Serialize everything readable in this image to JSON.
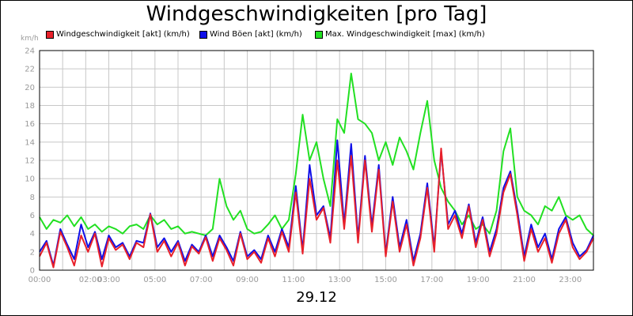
{
  "chart_data": {
    "type": "line",
    "title": "Windgeschwindigkeiten [pro Tag]",
    "ylabel": "km/h",
    "xlabel": "29.12",
    "ylim": [
      0,
      24
    ],
    "yticks": [
      0,
      2,
      4,
      6,
      8,
      10,
      12,
      14,
      16,
      18,
      20,
      22,
      24
    ],
    "xlim": [
      0,
      24
    ],
    "xticks": [
      {
        "x": 0,
        "label": "00:00"
      },
      {
        "x": 2.2,
        "label": "02:00"
      },
      {
        "x": 3,
        "label": "03:00"
      },
      {
        "x": 5,
        "label": "05:00"
      },
      {
        "x": 7,
        "label": "07:00"
      },
      {
        "x": 9,
        "label": "09:00"
      },
      {
        "x": 11,
        "label": "11:00"
      },
      {
        "x": 13,
        "label": "13:00"
      },
      {
        "x": 15,
        "label": "15:00"
      },
      {
        "x": 17,
        "label": "17:00"
      },
      {
        "x": 19,
        "label": "19:00"
      },
      {
        "x": 21,
        "label": "21:00"
      },
      {
        "x": 23,
        "label": "23:00"
      }
    ],
    "grid": true,
    "legend_position": "top",
    "series": [
      {
        "name": "Windgeschwindigkeit [akt] (km/h)",
        "color": "#e8202a",
        "x": [
          0,
          0.3,
          0.6,
          0.9,
          1.2,
          1.5,
          1.8,
          2.1,
          2.4,
          2.7,
          3.0,
          3.3,
          3.6,
          3.9,
          4.2,
          4.5,
          4.8,
          5.1,
          5.4,
          5.7,
          6.0,
          6.3,
          6.6,
          6.9,
          7.2,
          7.5,
          7.8,
          8.1,
          8.4,
          8.7,
          9.0,
          9.3,
          9.6,
          9.9,
          10.2,
          10.5,
          10.8,
          11.1,
          11.4,
          11.7,
          12.0,
          12.3,
          12.6,
          12.9,
          13.2,
          13.5,
          13.8,
          14.1,
          14.4,
          14.7,
          15.0,
          15.3,
          15.6,
          15.9,
          16.2,
          16.5,
          16.8,
          17.1,
          17.4,
          17.7,
          18.0,
          18.3,
          18.6,
          18.9,
          19.2,
          19.5,
          19.8,
          20.1,
          20.4,
          20.7,
          21.0,
          21.3,
          21.6,
          21.9,
          22.2,
          22.5,
          22.8,
          23.1,
          23.4,
          23.7,
          24.0
        ],
        "values": [
          1.5,
          3.0,
          0.3,
          4.2,
          2.5,
          0.5,
          3.8,
          2.0,
          4.0,
          0.4,
          3.5,
          2.2,
          2.8,
          1.2,
          3.0,
          2.5,
          6.1,
          2.0,
          3.2,
          1.5,
          3.0,
          0.5,
          2.6,
          1.8,
          3.6,
          1.0,
          3.5,
          2.2,
          0.5,
          4.0,
          1.2,
          2.0,
          0.8,
          3.5,
          1.5,
          4.2,
          2.0,
          8.5,
          1.8,
          10.0,
          5.5,
          6.8,
          3.0,
          12.0,
          4.5,
          12.5,
          3.0,
          12.0,
          4.2,
          11.0,
          1.5,
          7.5,
          2.0,
          5.0,
          0.5,
          3.5,
          9.0,
          2.0,
          13.3,
          4.5,
          6.0,
          3.5,
          7.0,
          2.5,
          5.5,
          1.5,
          4.0,
          8.5,
          10.5,
          6.0,
          1.0,
          4.5,
          2.0,
          3.5,
          0.8,
          4.0,
          5.5,
          2.5,
          1.2,
          2.0,
          3.5
        ]
      },
      {
        "name": "Wind Böen [akt] (km/h)",
        "color": "#0f0fe8",
        "x": [
          0,
          0.3,
          0.6,
          0.9,
          1.2,
          1.5,
          1.8,
          2.1,
          2.4,
          2.7,
          3.0,
          3.3,
          3.6,
          3.9,
          4.2,
          4.5,
          4.8,
          5.1,
          5.4,
          5.7,
          6.0,
          6.3,
          6.6,
          6.9,
          7.2,
          7.5,
          7.8,
          8.1,
          8.4,
          8.7,
          9.0,
          9.3,
          9.6,
          9.9,
          10.2,
          10.5,
          10.8,
          11.1,
          11.4,
          11.7,
          12.0,
          12.3,
          12.6,
          12.9,
          13.2,
          13.5,
          13.8,
          14.1,
          14.4,
          14.7,
          15.0,
          15.3,
          15.6,
          15.9,
          16.2,
          16.5,
          16.8,
          17.1,
          17.4,
          17.7,
          18.0,
          18.3,
          18.6,
          18.9,
          19.2,
          19.5,
          19.8,
          20.1,
          20.4,
          20.7,
          21.0,
          21.3,
          21.6,
          21.9,
          22.2,
          22.5,
          22.8,
          23.1,
          23.4,
          23.7,
          24.0
        ],
        "values": [
          2.0,
          3.2,
          0.5,
          4.5,
          2.8,
          1.2,
          5.0,
          2.5,
          4.2,
          1.2,
          3.8,
          2.5,
          3.0,
          1.5,
          3.2,
          3.0,
          6.2,
          2.5,
          3.5,
          2.0,
          3.2,
          1.0,
          2.8,
          2.0,
          3.8,
          1.5,
          3.8,
          2.5,
          1.0,
          4.2,
          1.5,
          2.2,
          1.2,
          3.8,
          2.0,
          4.5,
          2.5,
          9.2,
          2.2,
          11.5,
          6.0,
          7.0,
          3.5,
          14.2,
          5.0,
          13.8,
          3.5,
          12.5,
          4.8,
          11.5,
          1.8,
          8.0,
          2.5,
          5.5,
          1.0,
          4.0,
          9.5,
          2.5,
          13.0,
          5.0,
          6.5,
          4.0,
          7.2,
          3.0,
          5.8,
          2.0,
          4.5,
          9.0,
          10.8,
          6.5,
          1.5,
          5.0,
          2.5,
          4.0,
          1.2,
          4.5,
          5.8,
          3.0,
          1.5,
          2.2,
          3.8
        ]
      },
      {
        "name": "Max. Windgeschwindigkeit [max] (km/h)",
        "color": "#22e022",
        "x": [
          0,
          0.3,
          0.6,
          0.9,
          1.2,
          1.5,
          1.8,
          2.1,
          2.4,
          2.7,
          3.0,
          3.3,
          3.6,
          3.9,
          4.2,
          4.5,
          4.8,
          5.1,
          5.4,
          5.7,
          6.0,
          6.3,
          6.6,
          6.9,
          7.2,
          7.5,
          7.8,
          8.1,
          8.4,
          8.7,
          9.0,
          9.3,
          9.6,
          9.9,
          10.2,
          10.5,
          10.8,
          11.1,
          11.4,
          11.7,
          12.0,
          12.3,
          12.6,
          12.9,
          13.2,
          13.5,
          13.8,
          14.1,
          14.4,
          14.7,
          15.0,
          15.3,
          15.6,
          15.9,
          16.2,
          16.5,
          16.8,
          17.1,
          17.4,
          17.7,
          18.0,
          18.3,
          18.6,
          18.9,
          19.2,
          19.5,
          19.8,
          20.1,
          20.4,
          20.7,
          21.0,
          21.3,
          21.6,
          21.9,
          22.2,
          22.5,
          22.8,
          23.1,
          23.4,
          23.7,
          24.0
        ],
        "values": [
          5.8,
          4.5,
          5.5,
          5.2,
          6.0,
          4.8,
          5.8,
          4.5,
          5.0,
          4.2,
          4.8,
          4.5,
          4.0,
          4.8,
          5.0,
          4.5,
          6.0,
          5.0,
          5.5,
          4.5,
          4.8,
          4.0,
          4.2,
          4.0,
          3.8,
          4.5,
          10.0,
          7.0,
          5.5,
          6.5,
          4.5,
          4.0,
          4.2,
          5.0,
          6.0,
          4.5,
          5.5,
          10.5,
          17.0,
          12.0,
          14.0,
          10.0,
          7.0,
          16.5,
          15.0,
          21.5,
          16.5,
          16.0,
          15.0,
          12.0,
          14.0,
          11.5,
          14.5,
          13.0,
          11.0,
          15.0,
          18.5,
          12.0,
          9.0,
          7.5,
          6.5,
          5.0,
          6.0,
          4.5,
          5.0,
          4.0,
          6.5,
          13.0,
          15.5,
          8.0,
          6.5,
          6.0,
          5.0,
          7.0,
          6.5,
          8.0,
          6.0,
          5.5,
          6.0,
          4.5,
          3.8
        ]
      }
    ]
  }
}
